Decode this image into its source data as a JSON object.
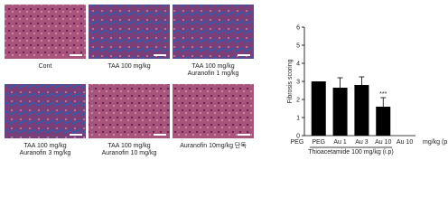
{
  "panels": [
    {
      "lines": [
        "Cont"
      ],
      "stain": "pink"
    },
    {
      "lines": [
        "TAA 100 mg/kg"
      ],
      "stain": "blue"
    },
    {
      "lines": [
        "TAA 100 mg/kg",
        "Auranofin 1 mg/kg"
      ],
      "stain": "blue"
    },
    {
      "lines": [
        "TAA 100 mg/kg",
        "Auranofin 3 mg/kg"
      ],
      "stain": "blue"
    },
    {
      "lines": [
        "TAA 100 mg/kg",
        "Auranofin 10 mg/kg"
      ],
      "stain": "pink"
    },
    {
      "lines": [
        "Auranofin 10mg/kg 단독"
      ],
      "stain": "pink"
    }
  ],
  "chart_data": {
    "type": "bar",
    "ylabel": "Fibrosis scoring",
    "categories": [
      "PEG",
      "PEG",
      "Au 1",
      "Au 3",
      "Au 10",
      "Au 10"
    ],
    "values": [
      0,
      3,
      2.65,
      2.8,
      1.6,
      0
    ],
    "errors": [
      null,
      null,
      0.55,
      0.45,
      0.5,
      null
    ],
    "color": "#000000",
    "ylim": [
      0,
      6
    ],
    "yticks": [
      0,
      1,
      2,
      3,
      4,
      5,
      6
    ],
    "unit_label": "mg/kg (p.o)",
    "group_label": "Thioacetamide 100 mg/kg (i.p)",
    "annotation": "***"
  }
}
